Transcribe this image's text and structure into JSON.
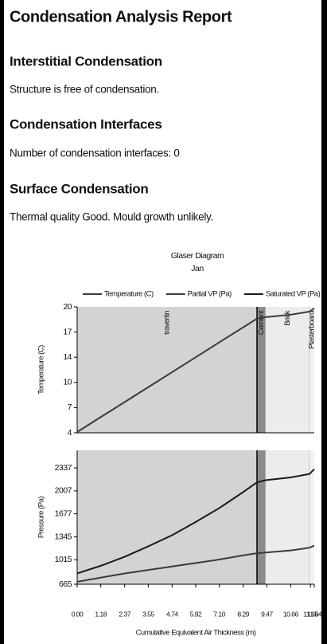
{
  "header": {
    "title": "Condensation Analysis Report"
  },
  "sections": [
    {
      "heading": "Interstitial Condensation",
      "text": "Structure is free of condensation."
    },
    {
      "heading": "Condensation Interfaces",
      "text": "Number of condensation interfaces: 0"
    },
    {
      "heading": "Surface Condensation",
      "text": "Thermal quality Good. Mould growth unlikely."
    }
  ],
  "chart_data": [
    {
      "type": "line",
      "title": "Glaser Diagram",
      "subtitle": "Jan",
      "ylabel": "Temperature (C)",
      "layers": [
        {
          "name": "travertin",
          "start": 0,
          "end": 8.98,
          "color": "#d3d3d3"
        },
        {
          "name": "Cement",
          "start": 8.98,
          "end": 9.4,
          "color": "#8c8c8c"
        },
        {
          "name": "Brick",
          "start": 9.4,
          "end": 11.6,
          "color": "#ececec"
        },
        {
          "name": "Plasterboard",
          "start": 11.6,
          "end": 11.84,
          "color": "#f2f2f2"
        }
      ],
      "x": [
        0,
        1.18,
        2.37,
        3.55,
        4.74,
        5.92,
        7.1,
        8.29,
        8.98,
        9.4,
        10.66,
        11.6,
        11.84
      ],
      "xlim": [
        0,
        11.84
      ],
      "ylim": [
        4,
        20
      ],
      "yticks": [
        {
          "value": 4,
          "label": "4"
        },
        {
          "value": 7.2,
          "label": "7"
        },
        {
          "value": 10.4,
          "label": "10"
        },
        {
          "value": 13.6,
          "label": "14"
        },
        {
          "value": 16.8,
          "label": "17"
        },
        20
      ],
      "series": [
        {
          "name": "Temperature (C)",
          "color": "#3a3a3a",
          "values": [
            4.1,
            6.0,
            7.9,
            9.8,
            11.7,
            13.6,
            15.5,
            17.4,
            18.5,
            18.7,
            19.0,
            19.4,
            19.8
          ]
        }
      ]
    },
    {
      "type": "line",
      "ylabel": "Pressure (Pa)",
      "xlabel": "Cumulative Equivalent Air Thickness (m)",
      "x": [
        0,
        1.18,
        2.37,
        3.55,
        4.74,
        5.92,
        7.1,
        8.29,
        8.98,
        9.4,
        10.66,
        11.6,
        11.84
      ],
      "xlim": [
        0,
        11.84
      ],
      "xticks": [
        {
          "value": 0,
          "label": "0.00"
        },
        1.18,
        2.37,
        3.55,
        4.74,
        5.92,
        {
          "value": 7.1,
          "label": "7.10"
        },
        8.29,
        9.47,
        10.66,
        11.65,
        11.84
      ],
      "ylim": [
        665,
        2590
      ],
      "yticks": [
        665,
        1015,
        1345,
        1677,
        2007,
        2337
      ],
      "series": [
        {
          "name": "Partial VP (Pa)",
          "color": "#3a3a3a",
          "values": [
            700,
            760,
            820,
            870,
            920,
            970,
            1020,
            1080,
            1110,
            1120,
            1150,
            1190,
            1220
          ]
        },
        {
          "name": "Saturated VP (Pa)",
          "color": "#1a1a1a",
          "values": [
            820,
            930,
            1060,
            1210,
            1370,
            1560,
            1760,
            1990,
            2130,
            2160,
            2200,
            2250,
            2320
          ]
        }
      ]
    }
  ]
}
